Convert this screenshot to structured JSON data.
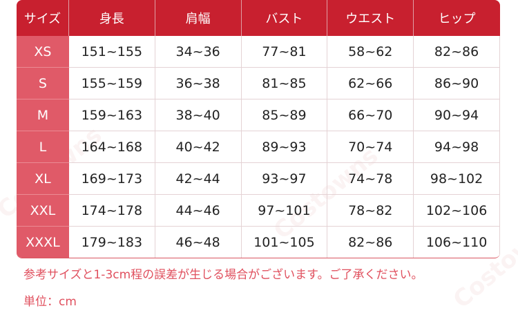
{
  "table": {
    "headers": [
      "サイズ",
      "身長",
      "肩幅",
      "バスト",
      "ウエスト",
      "ヒップ"
    ],
    "rows": [
      [
        "XS",
        "151~155",
        "34~36",
        "77~81",
        "58~62",
        "82~86"
      ],
      [
        "S",
        "155~159",
        "36~38",
        "81~85",
        "62~66",
        "86~90"
      ],
      [
        "M",
        "159~163",
        "38~40",
        "85~89",
        "66~70",
        "90~94"
      ],
      [
        "L",
        "164~168",
        "40~42",
        "89~93",
        "70~74",
        "94~98"
      ],
      [
        "XL",
        "169~173",
        "42~44",
        "93~97",
        "74~78",
        "98~102"
      ],
      [
        "XXL",
        "174~178",
        "44~46",
        "97~101",
        "78~82",
        "102~106"
      ],
      [
        "XXXL",
        "179~183",
        "46~48",
        "101~105",
        "82~86",
        "106~110"
      ]
    ]
  },
  "notes": {
    "line1": "参考サイズと1-3cm程の誤差が生じる場合がございます。ご了承ください。",
    "line2": "単位：cm"
  },
  "watermark": "Costowns",
  "colors": {
    "header": "#c8202f",
    "size_column": "#e05a68",
    "note_text": "#e0505e"
  }
}
